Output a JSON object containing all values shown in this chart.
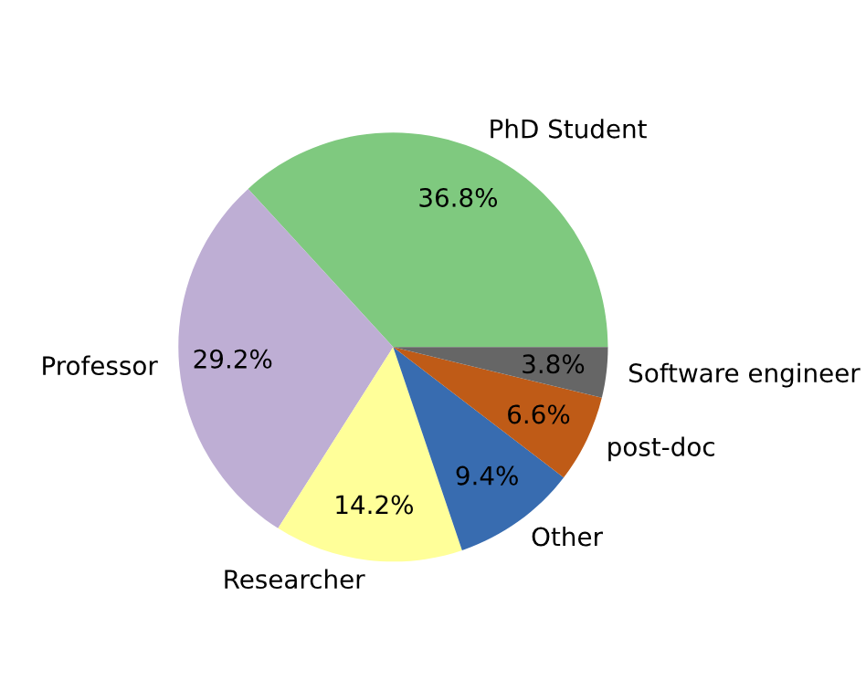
{
  "chart_data": {
    "type": "pie",
    "categories": [
      "PhD Student",
      "Professor",
      "Researcher",
      "Other",
      "post-doc",
      "Software engineer"
    ],
    "values": [
      36.8,
      29.2,
      14.2,
      9.4,
      6.6,
      3.8
    ],
    "colors": [
      "#7fc97f",
      "#beaed4",
      "#ffff99",
      "#386cb0",
      "#bf5b17",
      "#666666"
    ],
    "value_labels": [
      "36.8%",
      "29.2%",
      "14.2%",
      "9.4%",
      "6.6%",
      "3.8%"
    ],
    "legend": false
  }
}
